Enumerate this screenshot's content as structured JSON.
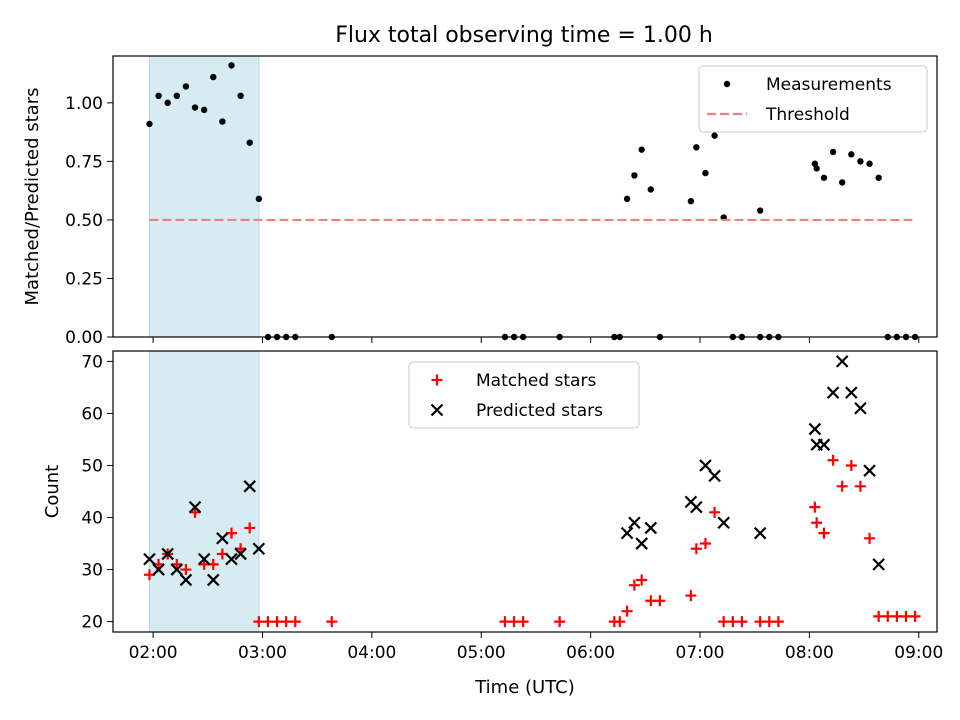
{
  "title": "Flux total observing time = 1.00 h",
  "chart_data": [
    {
      "type": "scatter",
      "ylabel": "Matched/Predicted stars",
      "xlabel": "",
      "xlim": [
        "01:38",
        "09:10"
      ],
      "ylim": [
        0,
        1.2
      ],
      "x_ticks": [
        "02:00",
        "03:00",
        "04:00",
        "05:00",
        "06:00",
        "07:00",
        "08:00",
        "09:00"
      ],
      "y_ticks": [
        "0.00",
        "0.25",
        "0.50",
        "0.75",
        "1.00"
      ],
      "x_tick_labels_shown": false,
      "grid": false,
      "legend": "top-right",
      "highlight_span": [
        "01:58",
        "02:58"
      ],
      "highlight_color": "#add8e6",
      "series": [
        {
          "name": "Measurements",
          "marker": "dot",
          "color": "#000000",
          "points": [
            [
              "01:58",
              0.91
            ],
            [
              "02:03",
              1.03
            ],
            [
              "02:08",
              1.0
            ],
            [
              "02:13",
              1.03
            ],
            [
              "02:18",
              1.07
            ],
            [
              "02:23",
              0.98
            ],
            [
              "02:28",
              0.97
            ],
            [
              "02:33",
              1.11
            ],
            [
              "02:38",
              0.92
            ],
            [
              "02:43",
              1.16
            ],
            [
              "02:48",
              1.03
            ],
            [
              "02:53",
              0.83
            ],
            [
              "02:58",
              0.59
            ],
            [
              "03:03",
              0.0
            ],
            [
              "03:08",
              0.0
            ],
            [
              "03:13",
              0.0
            ],
            [
              "03:18",
              0.0
            ],
            [
              "03:38",
              0.0
            ],
            [
              "05:13",
              0.0
            ],
            [
              "05:18",
              0.0
            ],
            [
              "05:23",
              0.0
            ],
            [
              "05:43",
              0.0
            ],
            [
              "06:13",
              0.0
            ],
            [
              "06:16",
              0.0
            ],
            [
              "06:20",
              0.59
            ],
            [
              "06:24",
              0.69
            ],
            [
              "06:28",
              0.8
            ],
            [
              "06:33",
              0.63
            ],
            [
              "06:38",
              0.0
            ],
            [
              "06:55",
              0.58
            ],
            [
              "06:58",
              0.81
            ],
            [
              "07:03",
              0.7
            ],
            [
              "07:08",
              0.86
            ],
            [
              "07:13",
              0.51
            ],
            [
              "07:18",
              0.0
            ],
            [
              "07:23",
              0.0
            ],
            [
              "07:33",
              0.54
            ],
            [
              "07:33",
              0.0
            ],
            [
              "07:38",
              0.0
            ],
            [
              "07:43",
              0.0
            ],
            [
              "08:03",
              0.74
            ],
            [
              "08:04",
              0.72
            ],
            [
              "08:08",
              0.68
            ],
            [
              "08:13",
              0.79
            ],
            [
              "08:18",
              0.66
            ],
            [
              "08:23",
              0.78
            ],
            [
              "08:28",
              0.75
            ],
            [
              "08:33",
              0.74
            ],
            [
              "08:38",
              0.68
            ],
            [
              "08:43",
              0.0
            ],
            [
              "08:48",
              0.0
            ],
            [
              "08:53",
              0.0
            ],
            [
              "08:58",
              0.0
            ]
          ]
        },
        {
          "name": "Threshold",
          "marker": "dashed-line",
          "color": "#f08080",
          "points": [
            [
              "01:58",
              0.5
            ],
            [
              "08:58",
              0.5
            ]
          ]
        }
      ]
    },
    {
      "type": "scatter",
      "ylabel": "Count",
      "xlabel": "Time (UTC)",
      "xlim": [
        "01:38",
        "09:10"
      ],
      "ylim": [
        18,
        72
      ],
      "x_ticks": [
        "02:00",
        "03:00",
        "04:00",
        "05:00",
        "06:00",
        "07:00",
        "08:00",
        "09:00"
      ],
      "y_ticks": [
        "20",
        "30",
        "40",
        "50",
        "60",
        "70"
      ],
      "x_tick_labels_shown": true,
      "grid": false,
      "legend": "top-center",
      "highlight_span": [
        "01:58",
        "02:58"
      ],
      "highlight_color": "#add8e6",
      "series": [
        {
          "name": "Matched stars",
          "marker": "plus",
          "color": "#ff0000",
          "points": [
            [
              "01:58",
              29
            ],
            [
              "02:03",
              31
            ],
            [
              "02:08",
              33
            ],
            [
              "02:13",
              31
            ],
            [
              "02:18",
              30
            ],
            [
              "02:23",
              41
            ],
            [
              "02:28",
              31
            ],
            [
              "02:33",
              31
            ],
            [
              "02:38",
              33
            ],
            [
              "02:43",
              37
            ],
            [
              "02:48",
              34
            ],
            [
              "02:53",
              38
            ],
            [
              "02:58",
              20
            ],
            [
              "03:03",
              20
            ],
            [
              "03:08",
              20
            ],
            [
              "03:13",
              20
            ],
            [
              "03:18",
              20
            ],
            [
              "03:38",
              20
            ],
            [
              "05:13",
              20
            ],
            [
              "05:18",
              20
            ],
            [
              "05:23",
              20
            ],
            [
              "05:43",
              20
            ],
            [
              "06:13",
              20
            ],
            [
              "06:16",
              20
            ],
            [
              "06:20",
              22
            ],
            [
              "06:24",
              27
            ],
            [
              "06:28",
              28
            ],
            [
              "06:33",
              24
            ],
            [
              "06:38",
              24
            ],
            [
              "06:55",
              25
            ],
            [
              "06:58",
              34
            ],
            [
              "07:03",
              35
            ],
            [
              "07:08",
              41
            ],
            [
              "07:13",
              20
            ],
            [
              "07:18",
              20
            ],
            [
              "07:23",
              20
            ],
            [
              "07:33",
              20
            ],
            [
              "07:38",
              20
            ],
            [
              "07:43",
              20
            ],
            [
              "08:03",
              42
            ],
            [
              "08:04",
              39
            ],
            [
              "08:08",
              37
            ],
            [
              "08:13",
              51
            ],
            [
              "08:18",
              46
            ],
            [
              "08:23",
              50
            ],
            [
              "08:28",
              46
            ],
            [
              "08:33",
              36
            ],
            [
              "08:38",
              21
            ],
            [
              "08:43",
              21
            ],
            [
              "08:48",
              21
            ],
            [
              "08:53",
              21
            ],
            [
              "08:58",
              21
            ]
          ]
        },
        {
          "name": "Predicted stars",
          "marker": "x",
          "color": "#000000",
          "points": [
            [
              "01:58",
              32
            ],
            [
              "02:03",
              30
            ],
            [
              "02:08",
              33
            ],
            [
              "02:13",
              30
            ],
            [
              "02:18",
              28
            ],
            [
              "02:23",
              42
            ],
            [
              "02:28",
              32
            ],
            [
              "02:33",
              28
            ],
            [
              "02:38",
              36
            ],
            [
              "02:43",
              32
            ],
            [
              "02:48",
              33
            ],
            [
              "02:53",
              46
            ],
            [
              "02:58",
              34
            ],
            [
              "06:20",
              37
            ],
            [
              "06:24",
              39
            ],
            [
              "06:28",
              35
            ],
            [
              "06:33",
              38
            ],
            [
              "06:55",
              43
            ],
            [
              "06:58",
              42
            ],
            [
              "07:03",
              50
            ],
            [
              "07:08",
              48
            ],
            [
              "07:13",
              39
            ],
            [
              "07:33",
              37
            ],
            [
              "08:03",
              57
            ],
            [
              "08:04",
              54
            ],
            [
              "08:08",
              54
            ],
            [
              "08:13",
              64
            ],
            [
              "08:18",
              70
            ],
            [
              "08:23",
              64
            ],
            [
              "08:28",
              61
            ],
            [
              "08:33",
              49
            ],
            [
              "08:38",
              31
            ]
          ]
        }
      ]
    }
  ]
}
